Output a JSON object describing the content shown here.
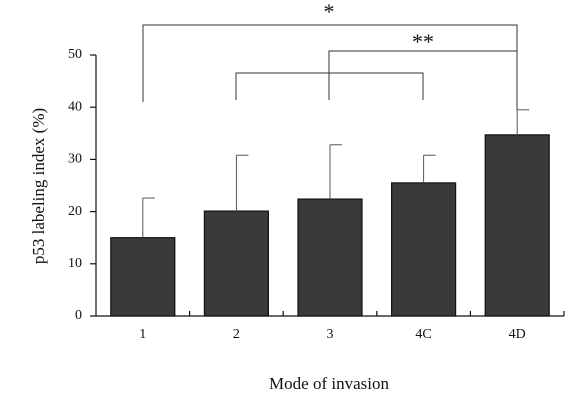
{
  "chart_data": {
    "type": "bar",
    "categories": [
      "1",
      "2",
      "3",
      "4C",
      "4D"
    ],
    "values": [
      15,
      20.1,
      22.4,
      25.5,
      34.7
    ],
    "errors": [
      7.6,
      10.7,
      10.4,
      5.3,
      4.8
    ],
    "color": "#3a3a3a",
    "ylim": [
      0,
      50
    ],
    "yticks": [
      0,
      10,
      20,
      30,
      40,
      50
    ],
    "xlabel": "Mode of invasion",
    "ylabel": "p53 labeling index (%)",
    "annotations": [
      "*",
      "**"
    ]
  }
}
